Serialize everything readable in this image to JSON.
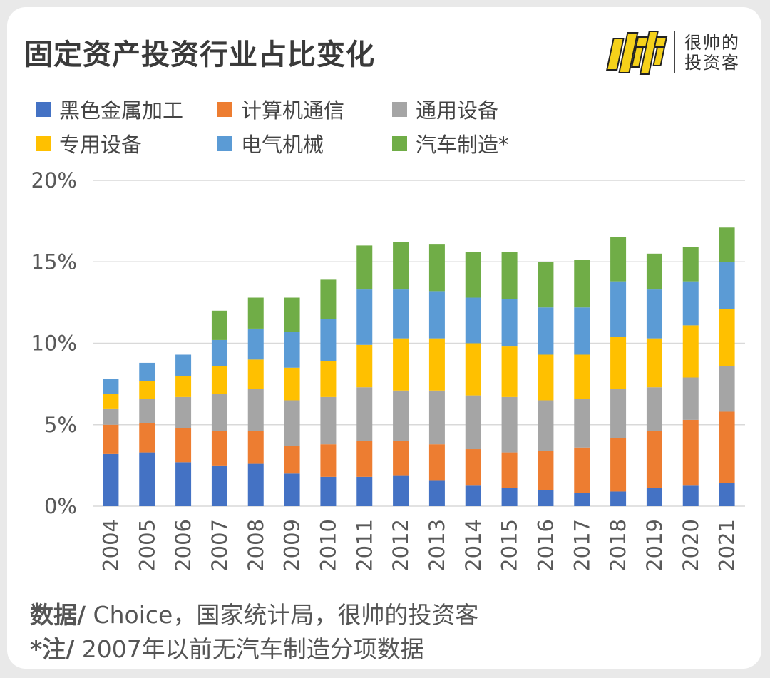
{
  "title": "固定资产投资行业占比变化",
  "brand": {
    "name_line1": "很帅的",
    "name_line2": "投资客",
    "logo_color": "#f5d11a",
    "logo_mark": "帅"
  },
  "footer": {
    "source_label": "数据/",
    "source_text": " Choice，国家统计局，很帅的投资客",
    "note_label": "*注/",
    "note_text": " 2007年以前无汽车制造分项数据"
  },
  "chart_data": {
    "type": "bar",
    "stacked": true,
    "categories": [
      "2004",
      "2005",
      "2006",
      "2007",
      "2008",
      "2009",
      "2010",
      "2011",
      "2012",
      "2013",
      "2014",
      "2015",
      "2016",
      "2017",
      "2018",
      "2019",
      "2020",
      "2021"
    ],
    "series": [
      {
        "name": "黑色金属加工",
        "color": "#4472c4",
        "values": [
          3.2,
          3.3,
          2.7,
          2.5,
          2.6,
          2.0,
          1.8,
          1.8,
          1.9,
          1.6,
          1.3,
          1.1,
          1.0,
          0.8,
          0.9,
          1.1,
          1.3,
          1.4
        ]
      },
      {
        "name": "计算机通信",
        "color": "#ed7d31",
        "values": [
          1.8,
          1.8,
          2.1,
          2.1,
          2.0,
          1.7,
          2.0,
          2.2,
          2.1,
          2.2,
          2.2,
          2.2,
          2.4,
          2.8,
          3.3,
          3.5,
          4.0,
          4.4
        ]
      },
      {
        "name": "通用设备",
        "color": "#a5a5a5",
        "values": [
          1.0,
          1.5,
          1.9,
          2.3,
          2.6,
          2.8,
          2.9,
          3.3,
          3.1,
          3.3,
          3.3,
          3.4,
          3.1,
          3.0,
          3.0,
          2.7,
          2.6,
          2.8
        ]
      },
      {
        "name": "专用设备",
        "color": "#ffc000",
        "values": [
          0.9,
          1.1,
          1.3,
          1.7,
          1.8,
          2.0,
          2.2,
          2.6,
          3.2,
          3.2,
          3.2,
          3.1,
          2.8,
          2.7,
          3.2,
          3.0,
          3.2,
          3.5
        ]
      },
      {
        "name": "电气机械",
        "color": "#5b9bd5",
        "values": [
          0.9,
          1.1,
          1.3,
          1.6,
          1.9,
          2.2,
          2.6,
          3.4,
          3.0,
          2.9,
          2.8,
          2.9,
          2.9,
          2.9,
          3.4,
          3.0,
          2.7,
          2.9
        ]
      },
      {
        "name": "汽车制造*",
        "color": "#70ad47",
        "values": [
          0,
          0,
          0,
          1.8,
          1.9,
          2.1,
          2.4,
          2.7,
          2.9,
          2.9,
          2.8,
          2.9,
          2.8,
          2.9,
          2.7,
          2.2,
          2.1,
          2.1
        ]
      }
    ],
    "y_ticks": [
      "0%",
      "5%",
      "10%",
      "15%",
      "20%"
    ],
    "ylim": [
      0,
      20
    ],
    "grid": true,
    "legend_position": "top-left"
  }
}
